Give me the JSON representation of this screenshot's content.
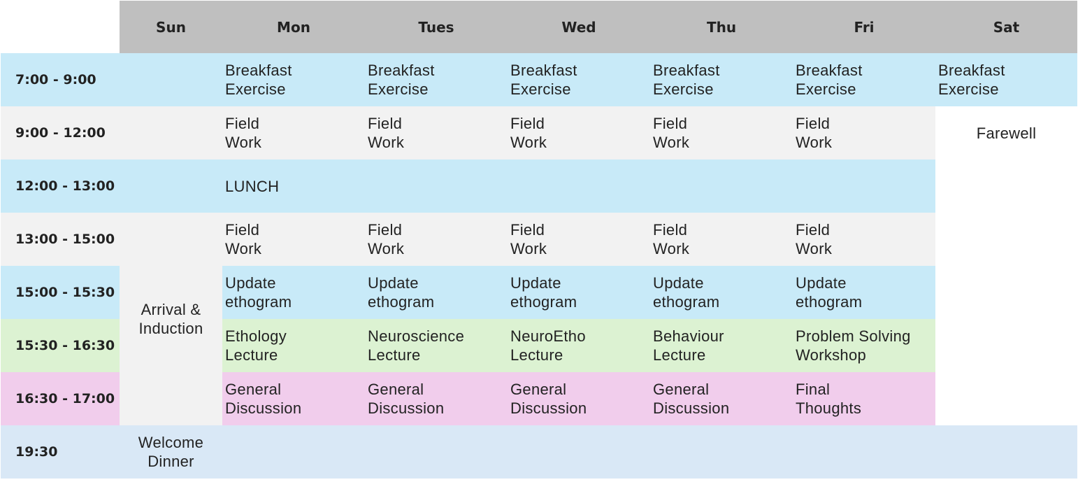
{
  "days": [
    "Sun",
    "Mon",
    "Tues",
    "Wed",
    "Thu",
    "Fri",
    "Sat"
  ],
  "times": [
    "7:00 - 9:00",
    "9:00 - 12:00",
    "12:00 - 13:00",
    "13:00 - 15:00",
    "15:00 - 15:30",
    "15:30 - 16:30",
    "16:30 - 17:00",
    "19:30"
  ],
  "activities": {
    "breakfast": [
      "Breakfast",
      "Exercise"
    ],
    "field_work": [
      "Field",
      "Work"
    ],
    "lunch": "LUNCH",
    "update": [
      "Update",
      "ethogram"
    ],
    "arrival": [
      "Arrival &",
      "Induction"
    ],
    "farewell": "Farewell",
    "lectures": [
      [
        "Ethology",
        "Lecture"
      ],
      [
        "Neuroscience",
        "Lecture"
      ],
      [
        "NeuroEtho",
        "Lecture"
      ],
      [
        "Behaviour",
        "Lecture"
      ],
      [
        "Problem Solving",
        "Workshop"
      ]
    ],
    "discussion": [
      "General",
      "Discussion"
    ],
    "final": [
      "Final",
      "Thoughts"
    ],
    "dinner": [
      "Welcome",
      "Dinner"
    ]
  },
  "colors": {
    "header": "#bfbfbf",
    "morning_lunch_update": "#c8eaf8",
    "field_work_rows": "#f2f2f2",
    "lecture": "#dcf2d2",
    "discussion": "#f1cdec",
    "dinner": "#d9e8f6"
  }
}
